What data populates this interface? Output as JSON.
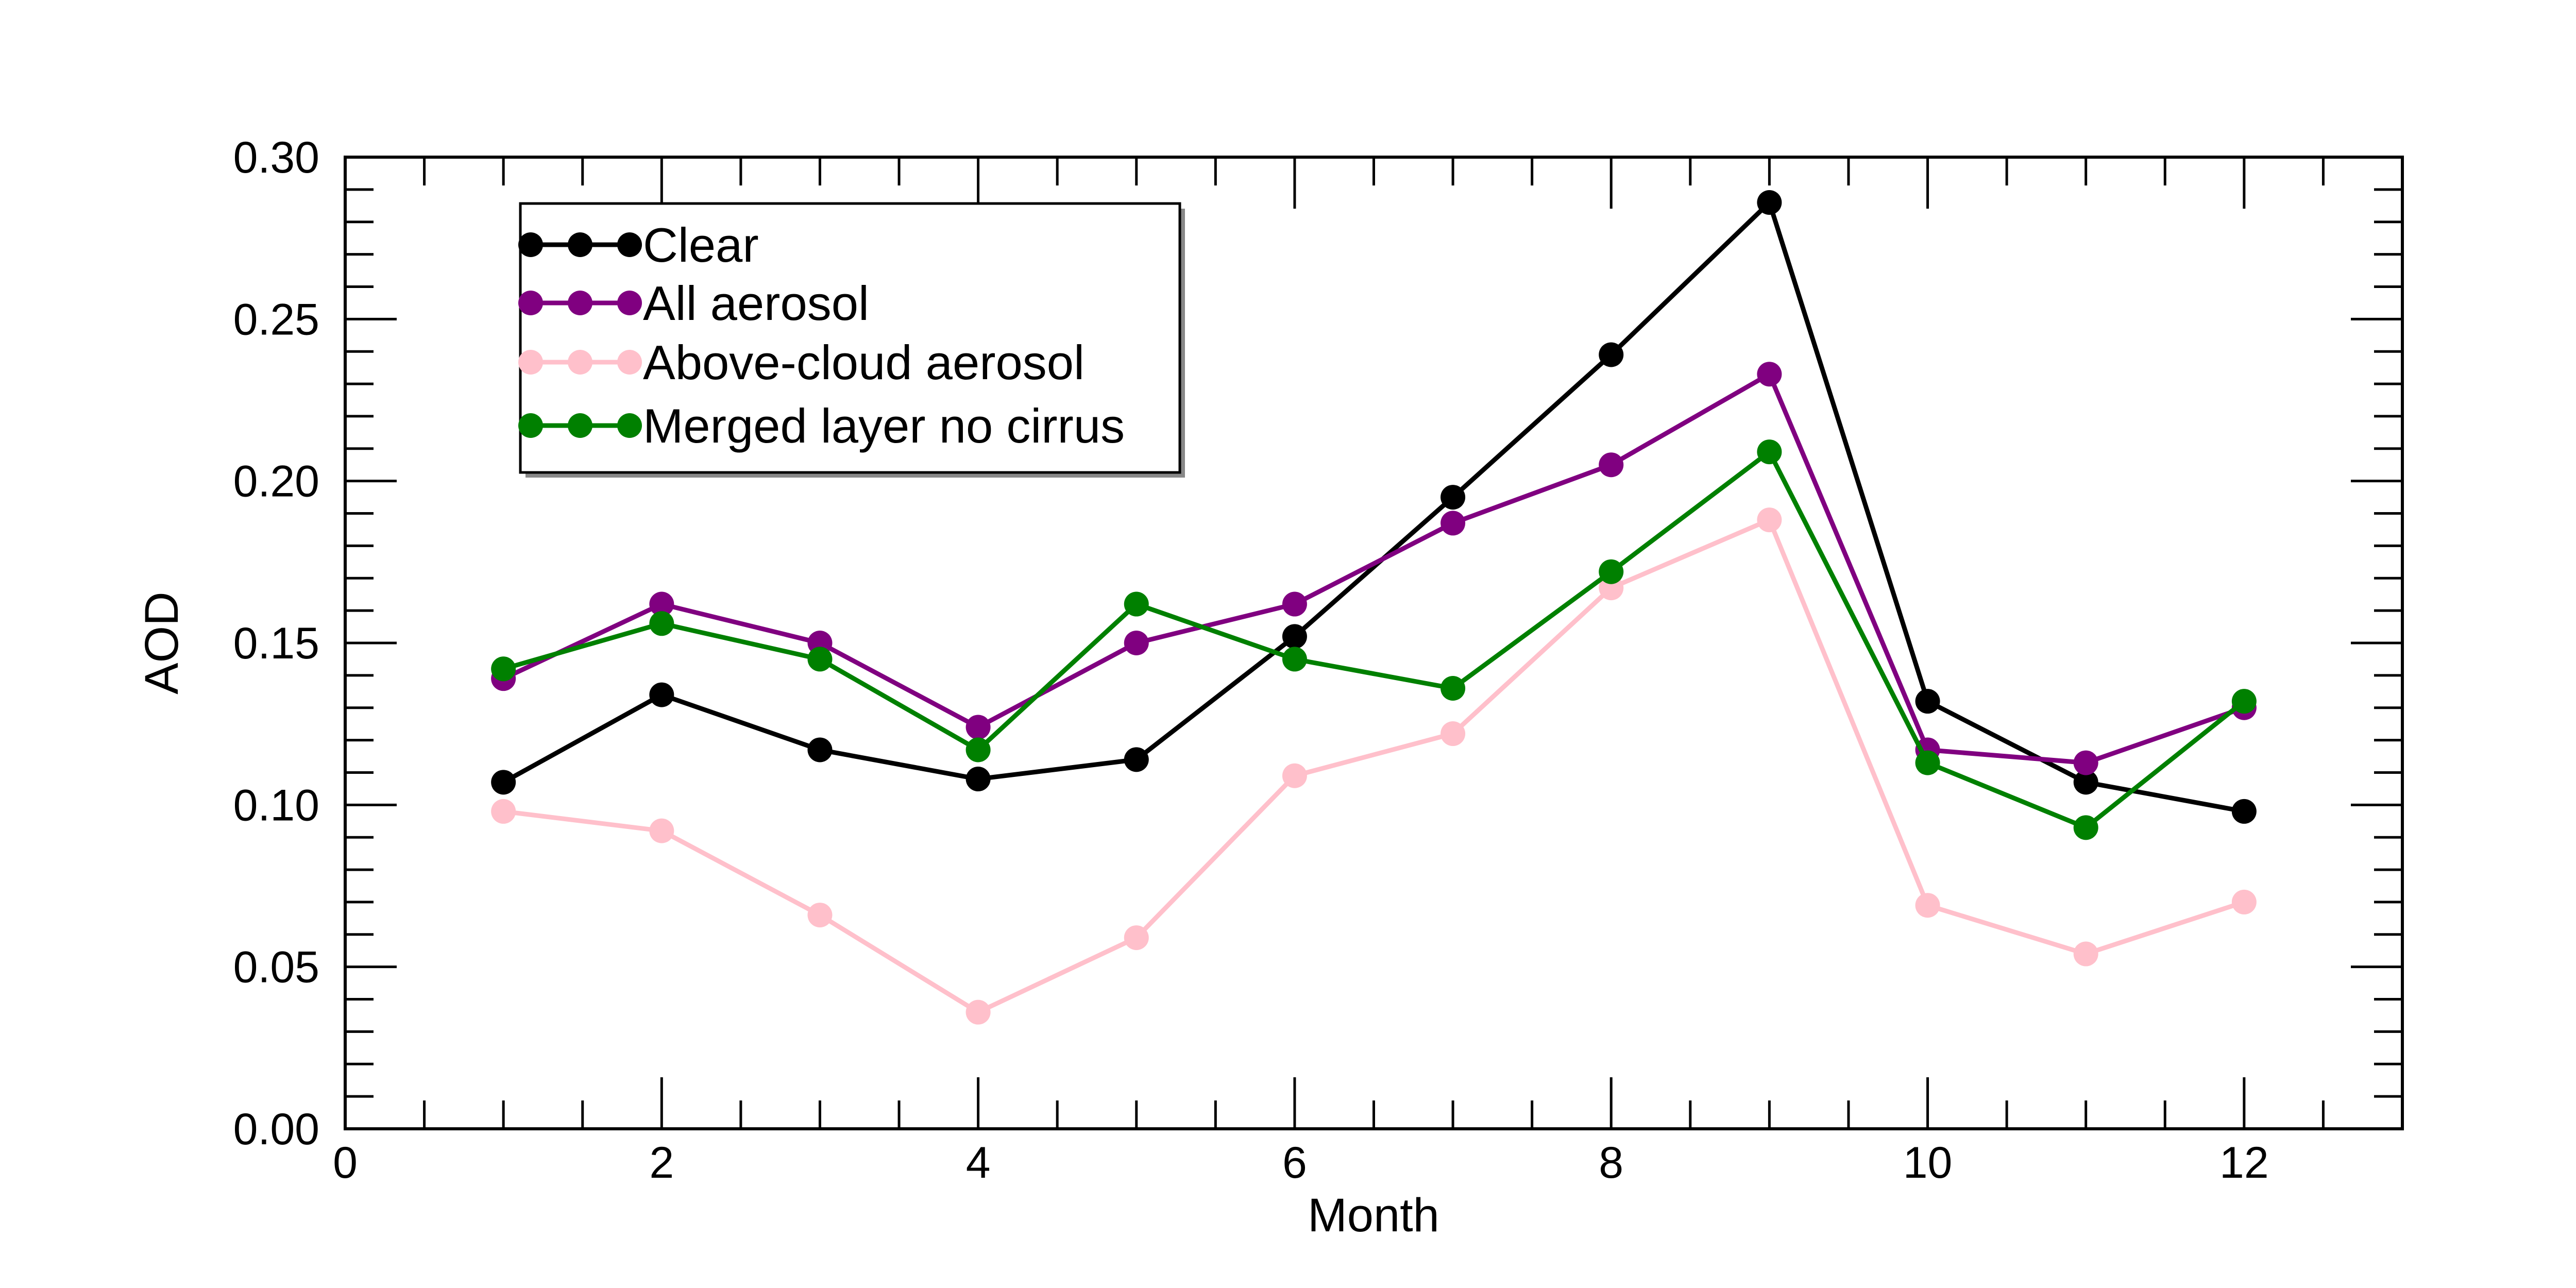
{
  "chart_data": {
    "type": "line",
    "title": "",
    "xlabel": "Month",
    "ylabel": "AOD",
    "xlim": [
      0,
      13
    ],
    "ylim": [
      0.0,
      0.3
    ],
    "x_ticks": [
      0,
      2,
      4,
      6,
      8,
      10,
      12
    ],
    "x_tick_labels": [
      "0",
      "2",
      "4",
      "6",
      "8",
      "10",
      "12"
    ],
    "y_ticks": [
      0.0,
      0.05,
      0.1,
      0.15,
      0.2,
      0.25,
      0.3
    ],
    "y_tick_labels": [
      "0.00",
      "0.05",
      "0.10",
      "0.15",
      "0.20",
      "0.25",
      "0.30"
    ],
    "grid": false,
    "legend_position": "top-left",
    "x": [
      1,
      2,
      3,
      4,
      5,
      6,
      7,
      8,
      9,
      10,
      11,
      12
    ],
    "series": [
      {
        "name": "Clear",
        "color": "#000000",
        "values": [
          0.107,
          0.134,
          0.117,
          0.108,
          0.114,
          0.152,
          0.195,
          0.239,
          0.286,
          0.132,
          0.107,
          0.098
        ]
      },
      {
        "name": "All aerosol",
        "color": "#800080",
        "values": [
          0.139,
          0.162,
          0.15,
          0.124,
          0.15,
          0.162,
          0.187,
          0.205,
          0.233,
          0.117,
          0.113,
          0.13
        ]
      },
      {
        "name": "Above-cloud aerosol",
        "color": "#FFC0CB",
        "values": [
          0.098,
          0.092,
          0.066,
          0.036,
          0.059,
          0.109,
          0.122,
          0.167,
          0.188,
          0.069,
          0.054,
          0.07
        ]
      },
      {
        "name": "Merged layer no cirrus",
        "color": "#008000",
        "values": [
          0.142,
          0.156,
          0.145,
          0.117,
          0.162,
          0.145,
          0.136,
          0.172,
          0.209,
          0.113,
          0.093,
          0.132
        ]
      }
    ]
  }
}
